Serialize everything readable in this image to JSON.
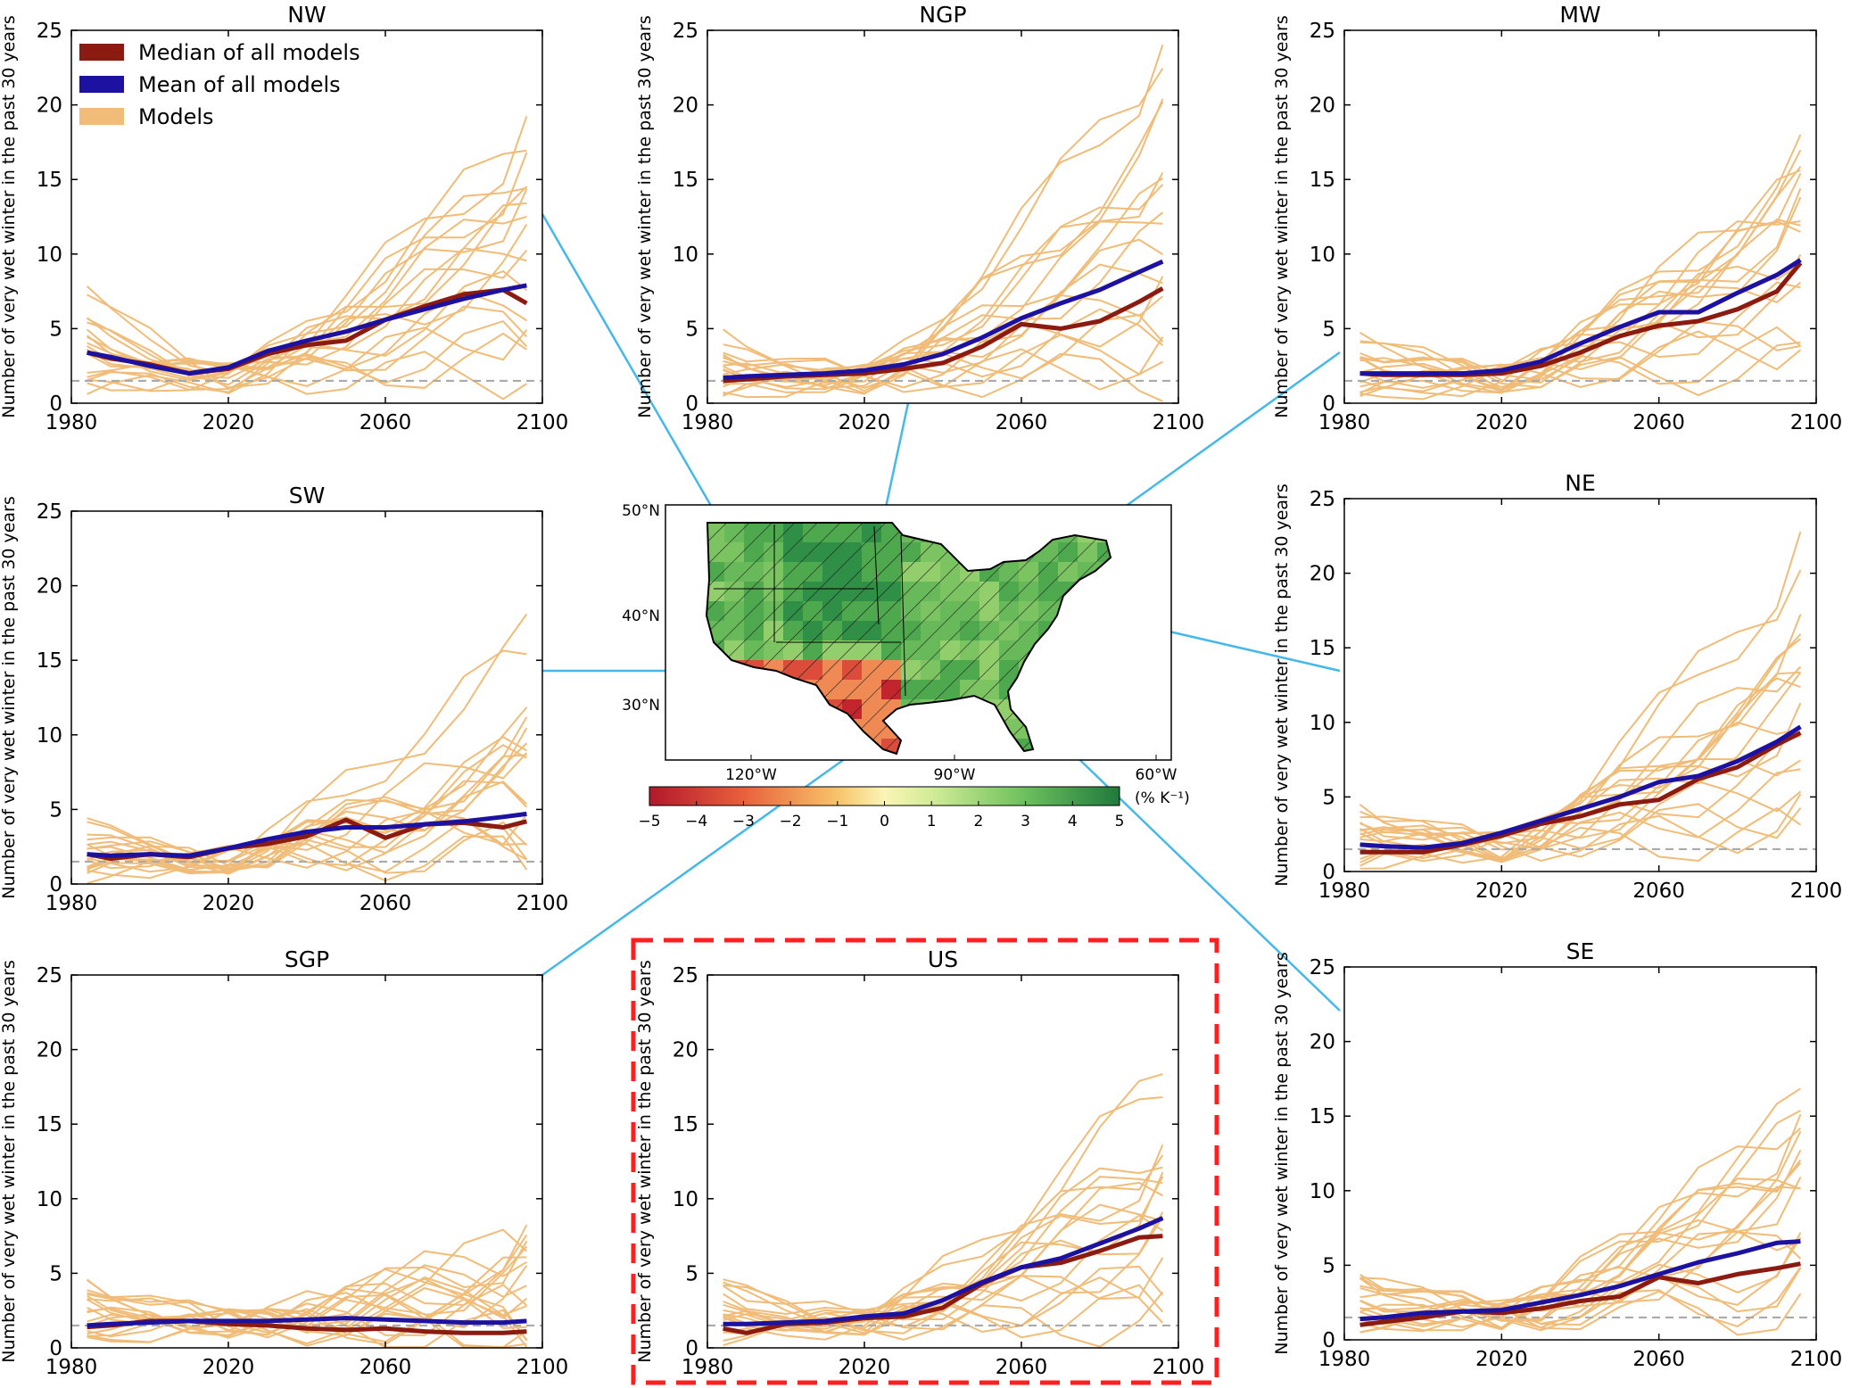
{
  "colors": {
    "median": "#8b1a10",
    "mean": "#1c11a0",
    "models": "#f0bc78",
    "baseline": "#aaaaaa",
    "connector": "#45b8ea",
    "highlight": "#ff1f1f",
    "map_border": "#000000"
  },
  "legend": {
    "median": "Median of all models",
    "mean": "Mean of all models",
    "models": "Models"
  },
  "map": {
    "lat_labels": [
      "50°N",
      "40°N",
      "30°N"
    ],
    "lon_labels": [
      "120°W",
      "90°W",
      "60°W"
    ],
    "colorbar_ticks": [
      "−5",
      "−4",
      "−3",
      "−2",
      "−1",
      "0",
      "1",
      "2",
      "3",
      "4",
      "5"
    ],
    "colorbar_unit": "(% K⁻¹)",
    "colormap": "RdYlGn",
    "range": [
      -5,
      5
    ],
    "hatched": true
  },
  "chart_data": [
    {
      "type": "line",
      "title": "NW",
      "ylabel": "Number of very wet winter in the past 30 years",
      "xlim": [
        1980,
        2100
      ],
      "ylim": [
        0,
        25
      ],
      "xticks": [
        "1980",
        "2020",
        "2060",
        "2100"
      ],
      "yticks": [
        "0",
        "5",
        "10",
        "15",
        "20",
        "25"
      ],
      "baseline": 1.5,
      "x": [
        1984,
        1990,
        2000,
        2010,
        2020,
        2030,
        2040,
        2050,
        2060,
        2070,
        2080,
        2090,
        2096
      ],
      "series": [
        {
          "name": "Median of all models",
          "values": [
            3.4,
            3.0,
            2.6,
            2.0,
            2.3,
            3.3,
            3.9,
            4.2,
            5.6,
            6.5,
            7.3,
            7.6,
            6.7
          ]
        },
        {
          "name": "Mean of all models",
          "values": [
            3.4,
            3.1,
            2.5,
            2.0,
            2.4,
            3.5,
            4.2,
            4.8,
            5.6,
            6.3,
            7.0,
            7.6,
            7.9
          ]
        }
      ],
      "model_tops": [
        18.7,
        16.4,
        14.5,
        13.0,
        11.5,
        10.0,
        8.3,
        7.5,
        6.0,
        5.3,
        4.2,
        3.0,
        2.2
      ]
    },
    {
      "type": "line",
      "title": "NGP",
      "ylabel": "Number of very wet winter in the past 30 years",
      "xlim": [
        1980,
        2100
      ],
      "ylim": [
        0,
        25
      ],
      "xticks": [
        "1980",
        "2020",
        "2060",
        "2100"
      ],
      "yticks": [
        "0",
        "5",
        "10",
        "15",
        "20",
        "25"
      ],
      "baseline": 1.5,
      "x": [
        1984,
        1990,
        2000,
        2010,
        2020,
        2030,
        2040,
        2050,
        2060,
        2070,
        2080,
        2090,
        2096
      ],
      "series": [
        {
          "name": "Median of all models",
          "values": [
            1.5,
            1.6,
            1.8,
            1.9,
            2.0,
            2.3,
            2.7,
            3.8,
            5.3,
            5.0,
            5.5,
            6.8,
            7.7
          ]
        },
        {
          "name": "Mean of all models",
          "values": [
            1.7,
            1.8,
            1.9,
            2.0,
            2.2,
            2.6,
            3.3,
            4.4,
            5.7,
            6.7,
            7.6,
            8.8,
            9.5
          ]
        }
      ],
      "model_tops": [
        24.3,
        18.4,
        16.4,
        14.0,
        11.3,
        10.0,
        8.5,
        7.0,
        5.8,
        5.0,
        4.0,
        3.0,
        2.0
      ]
    },
    {
      "type": "line",
      "title": "MW",
      "ylabel": "Number of very wet winter in the past 30 years",
      "xlim": [
        1980,
        2100
      ],
      "ylim": [
        0,
        25
      ],
      "xticks": [
        "1980",
        "2020",
        "2060",
        "2100"
      ],
      "yticks": [
        "0",
        "5",
        "10",
        "15",
        "20",
        "25"
      ],
      "baseline": 1.5,
      "x": [
        1984,
        1990,
        2000,
        2010,
        2020,
        2030,
        2040,
        2050,
        2060,
        2070,
        2080,
        2090,
        2096
      ],
      "series": [
        {
          "name": "Median of all models",
          "values": [
            2.0,
            1.9,
            1.9,
            1.9,
            2.0,
            2.5,
            3.4,
            4.5,
            5.2,
            5.5,
            6.3,
            7.5,
            9.4
          ]
        },
        {
          "name": "Mean of all models",
          "values": [
            2.0,
            2.0,
            2.0,
            2.0,
            2.2,
            2.8,
            4.0,
            5.1,
            6.1,
            6.1,
            7.4,
            8.6,
            9.6
          ]
        }
      ],
      "model_tops": [
        16.0,
        15.0,
        14.2,
        13.0,
        12.0,
        11.0,
        9.5,
        8.0,
        7.0,
        5.5,
        4.5,
        3.5,
        2.5
      ]
    },
    {
      "type": "line",
      "title": "SW",
      "ylabel": "Number of very wet winter in the past 30 years",
      "xlim": [
        1980,
        2100
      ],
      "ylim": [
        0,
        25
      ],
      "xticks": [
        "1980",
        "2020",
        "2060",
        "2100"
      ],
      "yticks": [
        "0",
        "5",
        "10",
        "15",
        "20",
        "25"
      ],
      "baseline": 1.5,
      "x": [
        1984,
        1990,
        2000,
        2010,
        2020,
        2030,
        2040,
        2050,
        2060,
        2070,
        2080,
        2090,
        2096
      ],
      "series": [
        {
          "name": "Median of all models",
          "values": [
            2.0,
            1.7,
            2.0,
            1.8,
            2.4,
            2.7,
            3.2,
            4.3,
            3.1,
            4.0,
            4.1,
            3.8,
            4.2
          ]
        },
        {
          "name": "Mean of all models",
          "values": [
            2.0,
            1.9,
            2.0,
            1.9,
            2.4,
            3.0,
            3.5,
            3.8,
            3.8,
            4.0,
            4.2,
            4.5,
            4.7
          ]
        }
      ],
      "model_tops": [
        16.5,
        10.0,
        9.2,
        8.5,
        7.6,
        6.6,
        5.8,
        5.0,
        4.4,
        3.6,
        3.0,
        2.4,
        1.8
      ]
    },
    {
      "type": "line",
      "title": "NE",
      "ylabel": "Number of very wet winter in the past 30 years",
      "xlim": [
        1980,
        2100
      ],
      "ylim": [
        0,
        25
      ],
      "xticks": [
        "1980",
        "2020",
        "2060",
        "2100"
      ],
      "yticks": [
        "0",
        "5",
        "10",
        "15",
        "20",
        "25"
      ],
      "baseline": 1.5,
      "x": [
        1984,
        1990,
        2000,
        2010,
        2020,
        2030,
        2040,
        2050,
        2060,
        2070,
        2080,
        2090,
        2096
      ],
      "series": [
        {
          "name": "Median of all models",
          "values": [
            1.3,
            1.3,
            1.3,
            1.8,
            2.4,
            3.2,
            3.7,
            4.5,
            4.8,
            6.2,
            7.0,
            8.5,
            9.3
          ]
        },
        {
          "name": "Mean of all models",
          "values": [
            1.8,
            1.7,
            1.6,
            1.9,
            2.6,
            3.4,
            4.2,
            5.0,
            6.0,
            6.4,
            7.4,
            8.7,
            9.7
          ]
        }
      ],
      "model_tops": [
        21.4,
        15.4,
        14.4,
        13.0,
        11.5,
        10.3,
        9.0,
        7.8,
        6.5,
        5.5,
        4.5,
        3.5,
        2.5
      ]
    },
    {
      "type": "line",
      "title": "SGP",
      "ylabel": "Number of very wet winter in the past 30 years",
      "xlim": [
        1980,
        2100
      ],
      "ylim": [
        0,
        25
      ],
      "xticks": [
        "1980",
        "2020",
        "2060",
        "2100"
      ],
      "yticks": [
        "0",
        "5",
        "10",
        "15",
        "20",
        "25"
      ],
      "baseline": 1.5,
      "x": [
        1984,
        1990,
        2000,
        2010,
        2020,
        2030,
        2040,
        2050,
        2060,
        2070,
        2080,
        2090,
        2096
      ],
      "series": [
        {
          "name": "Median of all models",
          "values": [
            1.4,
            1.5,
            1.8,
            1.8,
            1.6,
            1.5,
            1.3,
            1.2,
            1.3,
            1.1,
            1.0,
            1.0,
            1.1
          ]
        },
        {
          "name": "Mean of all models",
          "values": [
            1.5,
            1.6,
            1.7,
            1.8,
            1.8,
            1.8,
            1.9,
            2.0,
            1.9,
            1.8,
            1.7,
            1.7,
            1.8
          ]
        }
      ],
      "model_tops": [
        7.2,
        6.7,
        5.6,
        4.8,
        4.2,
        3.6,
        3.0,
        2.5,
        2.0,
        1.5,
        1.0,
        0.6,
        0.3
      ]
    },
    {
      "type": "line",
      "title": "US",
      "ylabel": "Number of very wet winter in the past 30 years",
      "xlim": [
        1980,
        2100
      ],
      "ylim": [
        0,
        25
      ],
      "xticks": [
        "1980",
        "2020",
        "2060",
        "2100"
      ],
      "yticks": [
        "0",
        "5",
        "10",
        "15",
        "20",
        "25"
      ],
      "baseline": 1.5,
      "highlighted": true,
      "x": [
        1984,
        1990,
        2000,
        2010,
        2020,
        2030,
        2040,
        2050,
        2060,
        2070,
        2080,
        2090,
        2096
      ],
      "series": [
        {
          "name": "Median of all models",
          "values": [
            1.3,
            1.0,
            1.6,
            1.7,
            2.0,
            2.1,
            2.7,
            4.3,
            5.4,
            5.7,
            6.5,
            7.4,
            7.5
          ]
        },
        {
          "name": "Mean of all models",
          "values": [
            1.6,
            1.6,
            1.7,
            1.8,
            2.1,
            2.3,
            3.2,
            4.4,
            5.4,
            6.0,
            7.0,
            8.0,
            8.7
          ]
        }
      ],
      "model_tops": [
        18.5,
        14.1,
        13.0,
        11.8,
        10.5,
        9.2,
        8.0,
        6.8,
        5.6,
        4.6,
        3.6,
        2.6,
        1.8
      ]
    },
    {
      "type": "line",
      "title": "SE",
      "ylabel": "Number of very wet winter in the past 30 years",
      "xlim": [
        1980,
        2100
      ],
      "ylim": [
        0,
        25
      ],
      "xticks": [
        "1980",
        "2020",
        "2060",
        "2100"
      ],
      "yticks": [
        "0",
        "5",
        "10",
        "15",
        "20",
        "25"
      ],
      "baseline": 1.5,
      "x": [
        1984,
        1990,
        2000,
        2010,
        2020,
        2030,
        2040,
        2050,
        2060,
        2070,
        2080,
        2090,
        2096
      ],
      "series": [
        {
          "name": "Median of all models",
          "values": [
            1.0,
            1.2,
            1.5,
            1.9,
            1.8,
            2.1,
            2.6,
            2.9,
            4.2,
            3.8,
            4.4,
            4.8,
            5.1
          ]
        },
        {
          "name": "Mean of all models",
          "values": [
            1.4,
            1.5,
            1.8,
            1.9,
            2.0,
            2.5,
            3.0,
            3.6,
            4.4,
            5.2,
            5.8,
            6.5,
            6.6
          ]
        }
      ],
      "model_tops": [
        16.0,
        14.5,
        13.3,
        12.0,
        10.8,
        9.5,
        8.3,
        7.0,
        6.0,
        5.0,
        4.0,
        3.0,
        2.0
      ]
    }
  ]
}
